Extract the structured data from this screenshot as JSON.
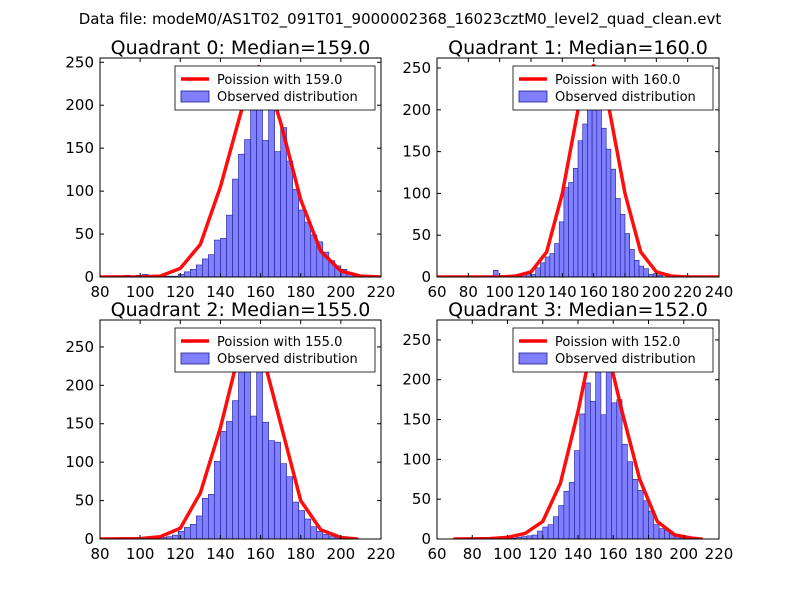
{
  "figure": {
    "suptitle": "Data file: modeM0/AS1T02_091T01_9000002368_16023cztM0_level2_quad_clean.evt",
    "colors": {
      "background": "#ffffff",
      "bar_fill": "#7f7fff",
      "bar_edge": "#1f1f8f",
      "curve": "#ff0000",
      "axis": "#000000"
    }
  },
  "chart_data": [
    {
      "type": "bar",
      "title": "Quadrant 0: Median=159.0",
      "xlabel": "",
      "ylabel": "",
      "xlim": [
        80,
        220
      ],
      "ylim": [
        0,
        255
      ],
      "xticks": [
        "80",
        "100",
        "120",
        "140",
        "160",
        "180",
        "200",
        "220"
      ],
      "yticks": [
        "0",
        "50",
        "100",
        "150",
        "200",
        "250"
      ],
      "bin_width": 3,
      "bins": [
        [
          83,
          1
        ],
        [
          86,
          1
        ],
        [
          89,
          1
        ],
        [
          92,
          2
        ],
        [
          95,
          1
        ],
        [
          98,
          2
        ],
        [
          101,
          3
        ],
        [
          104,
          1
        ],
        [
          107,
          1
        ],
        [
          110,
          1
        ],
        [
          113,
          1
        ],
        [
          116,
          1
        ],
        [
          119,
          3
        ],
        [
          122,
          6
        ],
        [
          125,
          9
        ],
        [
          128,
          14
        ],
        [
          131,
          21
        ],
        [
          134,
          26
        ],
        [
          137,
          43
        ],
        [
          140,
          45
        ],
        [
          143,
          72
        ],
        [
          146,
          114
        ],
        [
          149,
          143
        ],
        [
          152,
          160
        ],
        [
          155,
          197
        ],
        [
          158,
          245
        ],
        [
          161,
          159
        ],
        [
          164,
          203
        ],
        [
          167,
          146
        ],
        [
          170,
          174
        ],
        [
          173,
          135
        ],
        [
          176,
          102
        ],
        [
          179,
          78
        ],
        [
          182,
          64
        ],
        [
          185,
          49
        ],
        [
          188,
          41
        ],
        [
          191,
          29
        ],
        [
          194,
          19
        ],
        [
          197,
          13
        ],
        [
          200,
          9
        ],
        [
          203,
          5
        ],
        [
          206,
          3
        ],
        [
          209,
          1
        ]
      ],
      "curve_label": "Poission with 159.0",
      "curve_mean": 159.0,
      "curve_peak": 245,
      "curve": [
        [
          80,
          0
        ],
        [
          100,
          0.1
        ],
        [
          110,
          1
        ],
        [
          120,
          10
        ],
        [
          130,
          38
        ],
        [
          140,
          105
        ],
        [
          150,
          190
        ],
        [
          155,
          228
        ],
        [
          159,
          245
        ],
        [
          163,
          233
        ],
        [
          170,
          180
        ],
        [
          180,
          90
        ],
        [
          190,
          30
        ],
        [
          200,
          7
        ],
        [
          210,
          1
        ],
        [
          220,
          0
        ]
      ],
      "legend": {
        "entries": [
          "Poission with 159.0",
          "Observed distribution"
        ],
        "loc": "upper right"
      }
    },
    {
      "type": "bar",
      "title": "Quadrant 1: Median=160.0",
      "xlabel": "",
      "ylabel": "",
      "xlim": [
        60,
        240
      ],
      "ylim": [
        0,
        262
      ],
      "xticks": [
        "60",
        "80",
        "100",
        "120",
        "140",
        "160",
        "180",
        "200",
        "220",
        "240"
      ],
      "yticks": [
        "0",
        "50",
        "100",
        "150",
        "200",
        "250"
      ],
      "bin_width": 3,
      "bins": [
        [
          93,
          1
        ],
        [
          96,
          8
        ],
        [
          99,
          1
        ],
        [
          102,
          1
        ],
        [
          105,
          2
        ],
        [
          108,
          2
        ],
        [
          111,
          3
        ],
        [
          114,
          4
        ],
        [
          117,
          6
        ],
        [
          120,
          3
        ],
        [
          123,
          11
        ],
        [
          126,
          17
        ],
        [
          129,
          24
        ],
        [
          132,
          28
        ],
        [
          135,
          40
        ],
        [
          138,
          66
        ],
        [
          141,
          107
        ],
        [
          144,
          113
        ],
        [
          147,
          130
        ],
        [
          150,
          163
        ],
        [
          153,
          183
        ],
        [
          156,
          213
        ],
        [
          159,
          246
        ],
        [
          162,
          225
        ],
        [
          165,
          178
        ],
        [
          168,
          153
        ],
        [
          171,
          129
        ],
        [
          174,
          94
        ],
        [
          177,
          75
        ],
        [
          180,
          52
        ],
        [
          183,
          33
        ],
        [
          186,
          20
        ],
        [
          189,
          13
        ],
        [
          192,
          10
        ],
        [
          195,
          3
        ],
        [
          198,
          4
        ],
        [
          201,
          2
        ]
      ],
      "curve_label": "Poission with 160.0",
      "curve_mean": 160.0,
      "curve_peak": 253,
      "curve": [
        [
          60,
          0
        ],
        [
          100,
          0.1
        ],
        [
          110,
          1
        ],
        [
          120,
          6
        ],
        [
          130,
          30
        ],
        [
          140,
          100
        ],
        [
          150,
          200
        ],
        [
          155,
          240
        ],
        [
          160,
          253
        ],
        [
          165,
          240
        ],
        [
          170,
          200
        ],
        [
          180,
          100
        ],
        [
          190,
          30
        ],
        [
          200,
          6
        ],
        [
          210,
          1
        ],
        [
          220,
          0
        ],
        [
          240,
          0
        ]
      ],
      "legend": {
        "entries": [
          "Poission with 160.0",
          "Observed distribution"
        ],
        "loc": "upper right"
      }
    },
    {
      "type": "bar",
      "title": "Quadrant 2: Median=155.0",
      "xlabel": "",
      "ylabel": "",
      "xlim": [
        80,
        220
      ],
      "ylim": [
        0,
        285
      ],
      "xticks": [
        "80",
        "100",
        "120",
        "140",
        "160",
        "180",
        "200",
        "220"
      ],
      "yticks": [
        "0",
        "50",
        "100",
        "150",
        "200",
        "250"
      ],
      "bin_width": 3,
      "bins": [
        [
          86,
          1
        ],
        [
          89,
          1
        ],
        [
          92,
          1
        ],
        [
          95,
          1
        ],
        [
          98,
          2
        ],
        [
          101,
          1
        ],
        [
          104,
          2
        ],
        [
          107,
          1
        ],
        [
          110,
          2
        ],
        [
          113,
          3
        ],
        [
          116,
          5
        ],
        [
          119,
          10
        ],
        [
          122,
          15
        ],
        [
          125,
          19
        ],
        [
          128,
          30
        ],
        [
          131,
          53
        ],
        [
          134,
          58
        ],
        [
          137,
          101
        ],
        [
          140,
          140
        ],
        [
          143,
          153
        ],
        [
          146,
          180
        ],
        [
          149,
          240
        ],
        [
          152,
          256
        ],
        [
          155,
          160
        ],
        [
          158,
          218
        ],
        [
          161,
          152
        ],
        [
          164,
          128
        ],
        [
          167,
          126
        ],
        [
          170,
          98
        ],
        [
          173,
          81
        ],
        [
          176,
          48
        ],
        [
          179,
          37
        ],
        [
          182,
          26
        ],
        [
          185,
          16
        ],
        [
          188,
          10
        ],
        [
          191,
          6
        ],
        [
          194,
          4
        ],
        [
          197,
          2
        ],
        [
          200,
          1
        ]
      ],
      "curve_label": "Poission with 155.0",
      "curve_mean": 155.0,
      "curve_peak": 270,
      "curve": [
        [
          80,
          0
        ],
        [
          100,
          0.5
        ],
        [
          110,
          3
        ],
        [
          120,
          14
        ],
        [
          130,
          60
        ],
        [
          140,
          145
        ],
        [
          150,
          250
        ],
        [
          155,
          270
        ],
        [
          160,
          250
        ],
        [
          170,
          150
        ],
        [
          180,
          50
        ],
        [
          190,
          12
        ],
        [
          200,
          2
        ],
        [
          208,
          0
        ]
      ],
      "legend": {
        "entries": [
          "Poission with 155.0",
          "Observed distribution"
        ],
        "loc": "upper right"
      }
    },
    {
      "type": "bar",
      "title": "Quadrant 3: Median=152.0",
      "xlabel": "",
      "ylabel": "",
      "xlim": [
        60,
        220
      ],
      "ylim": [
        0,
        275
      ],
      "xticks": [
        "60",
        "80",
        "100",
        "120",
        "140",
        "160",
        "180",
        "200",
        "220"
      ],
      "yticks": [
        "0",
        "50",
        "100",
        "150",
        "200",
        "250"
      ],
      "bin_width": 3,
      "bins": [
        [
          75,
          1
        ],
        [
          78,
          1
        ],
        [
          81,
          1
        ],
        [
          84,
          2
        ],
        [
          87,
          1
        ],
        [
          90,
          2
        ],
        [
          93,
          1
        ],
        [
          96,
          1
        ],
        [
          99,
          2
        ],
        [
          102,
          1
        ],
        [
          105,
          2
        ],
        [
          108,
          3
        ],
        [
          111,
          4
        ],
        [
          114,
          5
        ],
        [
          117,
          10
        ],
        [
          120,
          15
        ],
        [
          123,
          18
        ],
        [
          126,
          28
        ],
        [
          129,
          42
        ],
        [
          132,
          60
        ],
        [
          135,
          71
        ],
        [
          138,
          111
        ],
        [
          141,
          157
        ],
        [
          144,
          196
        ],
        [
          147,
          173
        ],
        [
          150,
          251
        ],
        [
          153,
          156
        ],
        [
          156,
          211
        ],
        [
          159,
          171
        ],
        [
          162,
          175
        ],
        [
          165,
          119
        ],
        [
          168,
          97
        ],
        [
          171,
          75
        ],
        [
          174,
          61
        ],
        [
          177,
          48
        ],
        [
          180,
          35
        ],
        [
          183,
          18
        ],
        [
          186,
          13
        ],
        [
          189,
          11
        ],
        [
          192,
          7
        ],
        [
          195,
          5
        ],
        [
          198,
          4
        ],
        [
          201,
          2
        ],
        [
          204,
          1
        ]
      ],
      "curve_label": "Poission with 152.0",
      "curve_mean": 152.0,
      "curve_peak": 262,
      "curve": [
        [
          70,
          0
        ],
        [
          90,
          0.5
        ],
        [
          100,
          2
        ],
        [
          110,
          7
        ],
        [
          120,
          22
        ],
        [
          130,
          70
        ],
        [
          140,
          160
        ],
        [
          147,
          235
        ],
        [
          152,
          262
        ],
        [
          157,
          235
        ],
        [
          165,
          160
        ],
        [
          175,
          75
        ],
        [
          185,
          22
        ],
        [
          195,
          5
        ],
        [
          205,
          1
        ],
        [
          210,
          0
        ]
      ],
      "legend": {
        "entries": [
          "Poission with 152.0",
          "Observed distribution"
        ],
        "loc": "upper right"
      }
    }
  ]
}
